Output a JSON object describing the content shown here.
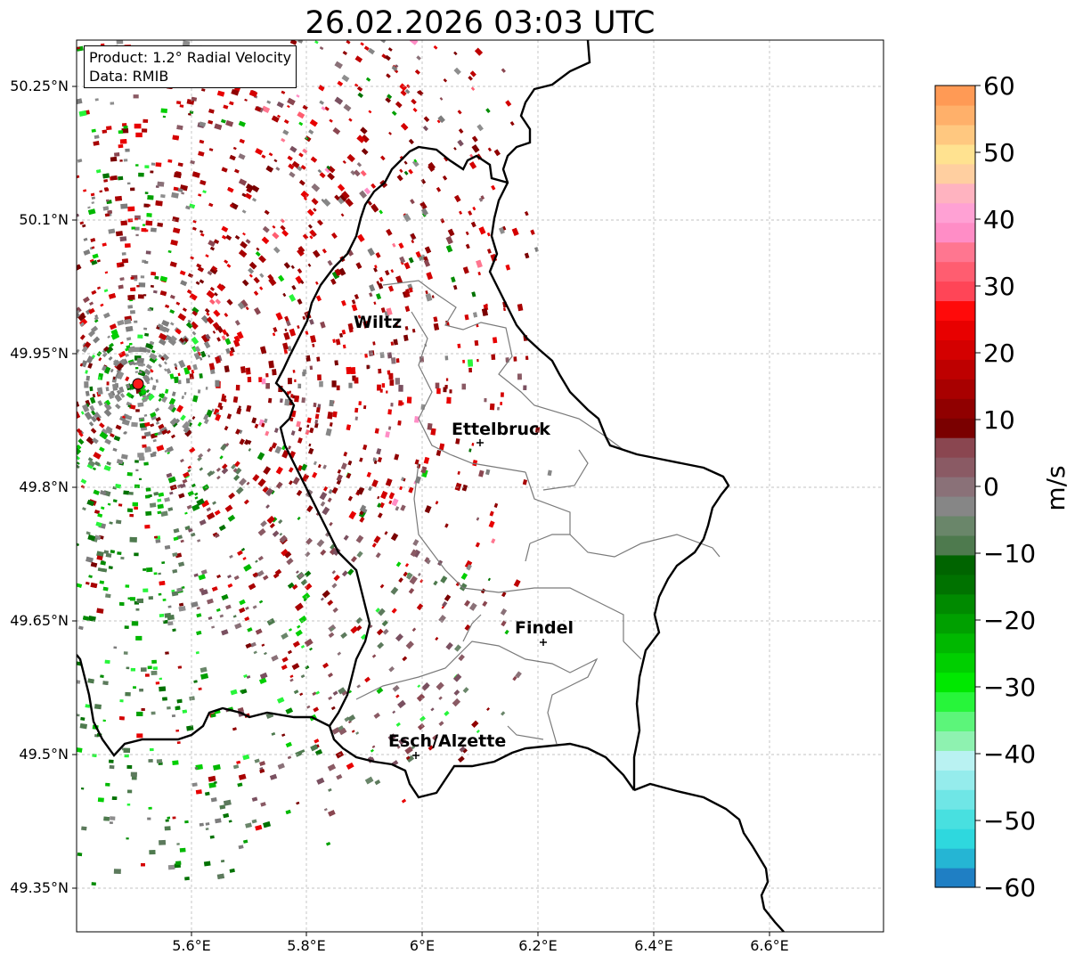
{
  "title": "26.02.2026 03:03 UTC",
  "info": {
    "product": "Product: 1.2° Radial Velocity",
    "data_source": "Data: RMIB"
  },
  "axes": {
    "lon_ticks": [
      "5.6°E",
      "5.8°E",
      "6°E",
      "6.2°E",
      "6.4°E",
      "6.6°E"
    ],
    "lat_ticks": [
      "50.25°N",
      "50.1°N",
      "49.95°N",
      "49.8°N",
      "49.65°N",
      "49.5°N",
      "49.35°N"
    ]
  },
  "cities": [
    {
      "name": "Wiltz"
    },
    {
      "name": "Ettelbruck"
    },
    {
      "name": "Findel"
    },
    {
      "name": "Esch/Alzette"
    }
  ],
  "colorbar": {
    "label": "m/s",
    "ticks": [
      "60",
      "50",
      "40",
      "30",
      "20",
      "10",
      "0",
      "−10",
      "−20",
      "−30",
      "−40",
      "−50",
      "−60"
    ],
    "range": [
      -60,
      60
    ],
    "colors": [
      "#1f7fc4",
      "#25b5d4",
      "#2ed8de",
      "#48e0e0",
      "#6fe6e6",
      "#95ecec",
      "#b9f2f2",
      "#8ef2b0",
      "#5cf57a",
      "#27f53a",
      "#00e800",
      "#00cf00",
      "#00b800",
      "#00a000",
      "#008a00",
      "#007200",
      "#006400",
      "#4e7a4e",
      "#6a866a",
      "#868686",
      "#8a7178",
      "#8a5a64",
      "#8a4650",
      "#7a0000",
      "#900000",
      "#a80000",
      "#be0000",
      "#d40000",
      "#e80000",
      "#ff0a0a",
      "#ff4557",
      "#ff5d70",
      "#ff7690",
      "#ff8dc6",
      "#ffa1d4",
      "#ffb3c0",
      "#ffcfa0",
      "#ffe290",
      "#ffc880",
      "#ffb06a",
      "#ff9a55"
    ]
  },
  "radar_site_color": "#ff1a1a"
}
